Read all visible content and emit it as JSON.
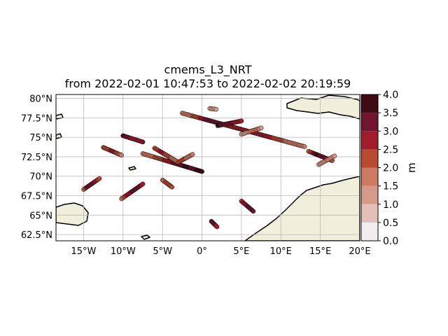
{
  "title": "cmems_L3_NRT",
  "subtitle": "from 2022-02-01 10:47:53 to 2022-02-02 20:19:59",
  "chart_data": {
    "type": "scatter",
    "projection": "PlateCarree",
    "xlim": [
      -18.5,
      20
    ],
    "ylim": [
      61.7,
      80.5
    ],
    "x_ticks": [
      {
        "value": -15,
        "label": "15°W"
      },
      {
        "value": -10,
        "label": "10°W"
      },
      {
        "value": -5,
        "label": "5°W"
      },
      {
        "value": 0,
        "label": "0°"
      },
      {
        "value": 5,
        "label": "5°E"
      },
      {
        "value": 10,
        "label": "10°E"
      },
      {
        "value": 15,
        "label": "15°E"
      },
      {
        "value": 20,
        "label": "20°E"
      }
    ],
    "y_ticks": [
      {
        "value": 62.5,
        "label": "62.5°N"
      },
      {
        "value": 65,
        "label": "65°N"
      },
      {
        "value": 67.5,
        "label": "67.5°N"
      },
      {
        "value": 70,
        "label": "70°N"
      },
      {
        "value": 72.5,
        "label": "72.5°N"
      },
      {
        "value": 75,
        "label": "75°N"
      },
      {
        "value": 77.5,
        "label": "77.5°N"
      },
      {
        "value": 80,
        "label": "80°N"
      }
    ],
    "grid": true,
    "land_color": "#efefdb",
    "colorbar": {
      "label": "m",
      "min": 0,
      "max": 4,
      "ticks": [
        "0.0",
        "0.5",
        "1.0",
        "1.5",
        "2.0",
        "2.5",
        "3.0",
        "3.5",
        "4.0"
      ],
      "colors": [
        "#f2eeee",
        "#e2c0b8",
        "#d69a88",
        "#cd7a62",
        "#b84a32",
        "#9e1c2c",
        "#701530",
        "#3e0c12"
      ]
    },
    "tracks": [
      {
        "start": [
          -2.5,
          78.1
        ],
        "end": [
          13,
          73.8
        ],
        "values": [
          1.6,
          2.2,
          3.5,
          3.2,
          2.7,
          2.5,
          3.0,
          2.2,
          1.8,
          1.5
        ]
      },
      {
        "start": [
          -10,
          75.2
        ],
        "end": [
          -7.5,
          74.4
        ],
        "values": [
          3.6,
          3.2,
          2.8,
          2.6,
          3.0
        ]
      },
      {
        "start": [
          -12.5,
          73.7
        ],
        "end": [
          -10.2,
          72.7
        ],
        "values": [
          2.0,
          2.4,
          2.8,
          2.2,
          1.9
        ]
      },
      {
        "start": [
          -7.5,
          72.9
        ],
        "end": [
          0.0,
          70.6
        ],
        "values": [
          1.5,
          1.8,
          2.3,
          2.8,
          3.2,
          3.6,
          3.4,
          3.8
        ]
      },
      {
        "start": [
          -6.0,
          73.6
        ],
        "end": [
          -3.0,
          71.8
        ],
        "values": [
          2.3,
          2.6,
          2.0,
          1.8
        ]
      },
      {
        "start": [
          -3.0,
          71.8
        ],
        "end": [
          -1.2,
          72.8
        ],
        "values": [
          2.4,
          2.0,
          1.6
        ]
      },
      {
        "start": [
          1.0,
          78.7
        ],
        "end": [
          1.8,
          78.6
        ],
        "values": [
          1.2,
          1.4
        ]
      },
      {
        "start": [
          2.0,
          76.5
        ],
        "end": [
          5.0,
          77.1
        ],
        "values": [
          3.6,
          3.2,
          3.0,
          2.8
        ]
      },
      {
        "start": [
          5.0,
          75.4
        ],
        "end": [
          7.5,
          76.2
        ],
        "values": [
          1.3,
          1.5,
          1.7,
          1.4
        ]
      },
      {
        "start": [
          13.5,
          73.2
        ],
        "end": [
          16.5,
          72.0
        ],
        "values": [
          1.8,
          3.6,
          3.2,
          2.4
        ]
      },
      {
        "start": [
          14.8,
          71.5
        ],
        "end": [
          16.8,
          72.6
        ],
        "values": [
          1.2,
          1.5,
          1.3
        ]
      },
      {
        "start": [
          -15.0,
          68.3
        ],
        "end": [
          -13.0,
          69.7
        ],
        "values": [
          1.8,
          3.4,
          3.0,
          2.2
        ]
      },
      {
        "start": [
          -10.2,
          67.1
        ],
        "end": [
          -7.5,
          69.0
        ],
        "values": [
          1.8,
          2.6,
          3.2,
          3.4,
          2.8
        ]
      },
      {
        "start": [
          -5.0,
          69.5
        ],
        "end": [
          -3.8,
          68.6
        ],
        "values": [
          1.8,
          2.2,
          2.0
        ]
      },
      {
        "start": [
          5.0,
          66.8
        ],
        "end": [
          6.5,
          65.5
        ],
        "values": [
          2.4,
          2.8,
          3.2,
          3.0
        ]
      },
      {
        "start": [
          1.2,
          64.2
        ],
        "end": [
          1.9,
          63.5
        ],
        "values": [
          3.0,
          3.4,
          2.6
        ]
      }
    ]
  }
}
